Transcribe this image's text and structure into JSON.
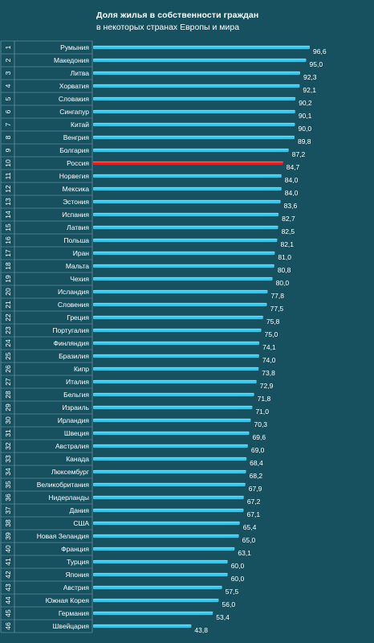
{
  "chart_data": {
    "type": "bar",
    "orientation": "horizontal",
    "title": "Доля жилья в собственности  граждан",
    "subtitle": "в некоторых странах Европы и мира",
    "ranks": [
      "1",
      "2",
      "3",
      "4",
      "5",
      "6",
      "7",
      "8",
      "9",
      "10",
      "11",
      "12",
      "13",
      "14",
      "15",
      "16",
      "17",
      "18",
      "19",
      "20",
      "21",
      "22",
      "23",
      "24",
      "25",
      "26",
      "27",
      "28",
      "29",
      "30",
      "31",
      "32",
      "33",
      "34",
      "35",
      "36",
      "37",
      "38",
      "39",
      "40",
      "41",
      "42",
      "43",
      "44",
      "45",
      "46"
    ],
    "categories": [
      "Румыния",
      "Македония",
      "Литва",
      "Хорватия",
      "Словакия",
      "Сингапур",
      "Китай",
      "Венгрия",
      "Болгария",
      "Россия",
      "Норвегия",
      "Мексика",
      "Эстония",
      "Испания",
      "Латвия",
      "Польша",
      "Иран",
      "Мальта",
      "Чехия",
      "Исландия",
      "Словения",
      "Греция",
      "Португалия",
      "Финляндия",
      "Бразилия",
      "Кипр",
      "Италия",
      "Бельгия",
      "Израиль",
      "Ирландия",
      "Швеция",
      "Австралия",
      "Канада",
      "Люксембург",
      "Великобритания",
      "Нидерланды",
      "Дания",
      "США",
      "Новая Зеландия",
      "Франция",
      "Турция",
      "Япония",
      "Австрия",
      "Южная Корея",
      "Германия",
      "Швейцария"
    ],
    "values": [
      96.6,
      95.0,
      92.3,
      92.1,
      90.2,
      90.1,
      90.0,
      89.8,
      87.2,
      84.7,
      84.0,
      84.0,
      83.6,
      82.7,
      82.5,
      82.1,
      81.0,
      80.8,
      80.0,
      77.8,
      77.5,
      75.8,
      75.0,
      74.1,
      74.0,
      73.8,
      72.9,
      71.8,
      71.0,
      70.3,
      69.6,
      69.0,
      68.4,
      68.2,
      67.9,
      67.2,
      67.1,
      65.4,
      65.0,
      63.1,
      60.0,
      60.0,
      57.5,
      56.0,
      53.4,
      43.8
    ],
    "value_labels": [
      "96,6",
      "95,0",
      "92,3",
      "92,1",
      "90,2",
      "90,1",
      "90,0",
      "89,8",
      "87,2",
      "84,7",
      "84,0",
      "84,0",
      "83,6",
      "82,7",
      "82,5",
      "82,1",
      "81,0",
      "80,8",
      "80,0",
      "77,8",
      "77,5",
      "75,8",
      "75,0",
      "74,1",
      "74,0",
      "73,8",
      "72,9",
      "71,8",
      "71,0",
      "70,3",
      "69,6",
      "69,0",
      "68,4",
      "68,2",
      "67,9",
      "67,2",
      "67,1",
      "65,4",
      "65,0",
      "63,1",
      "60,0",
      "60,0",
      "57,5",
      "56,0",
      "53,4",
      "43,8"
    ],
    "highlight": "Россия",
    "colors": {
      "background": "#17505f",
      "bar": "#39c3e6",
      "bar_highlight": "#e11f1f",
      "grid": "#7fa6b1"
    },
    "grid": true
  }
}
